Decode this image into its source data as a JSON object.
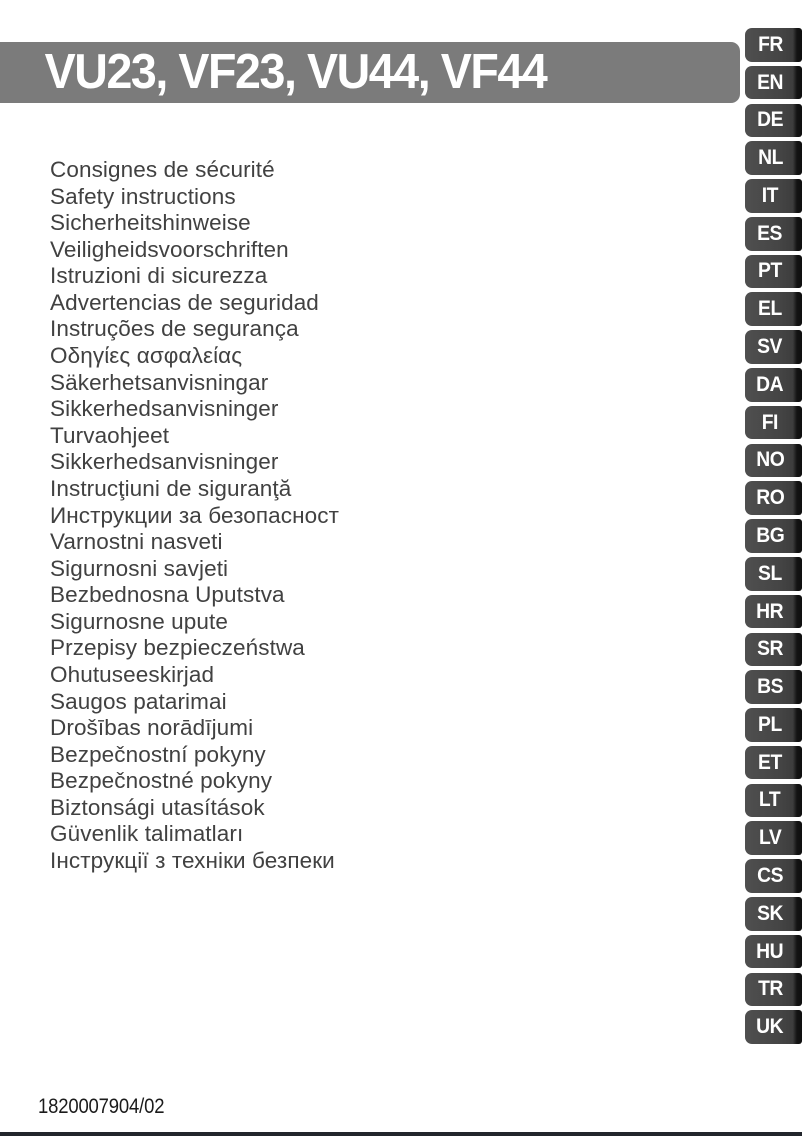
{
  "page": {
    "title": "VU23, VF23, VU44, VF44",
    "doc_code": "1820007904/02"
  },
  "languages": [
    {
      "code": "FR",
      "label": "Consignes de sécurité"
    },
    {
      "code": "EN",
      "label": "Safety instructions"
    },
    {
      "code": "DE",
      "label": "Sicherheitshinweise"
    },
    {
      "code": "NL",
      "label": "Veiligheidsvoorschriften"
    },
    {
      "code": "IT",
      "label": "Istruzioni di sicurezza"
    },
    {
      "code": "ES",
      "label": "Advertencias de seguridad"
    },
    {
      "code": "PT",
      "label": "Instruções de segurança"
    },
    {
      "code": "EL",
      "label": "Οδηγίες ασφαλείας"
    },
    {
      "code": "SV",
      "label": "Säkerhetsanvisningar"
    },
    {
      "code": "DA",
      "label": "Sikkerhedsanvisninger"
    },
    {
      "code": "FI",
      "label": "Turvaohjeet"
    },
    {
      "code": "NO",
      "label": "Sikkerhedsanvisninger"
    },
    {
      "code": "RO",
      "label": "Instrucţiuni de siguranţă"
    },
    {
      "code": "BG",
      "label": "Инструкции за безопасност"
    },
    {
      "code": "SL",
      "label": "Varnostni nasveti"
    },
    {
      "code": "HR",
      "label": "Sigurnosni savjeti"
    },
    {
      "code": "SR",
      "label": "Bezbednosna Uputstva"
    },
    {
      "code": "BS",
      "label": "Sigurnosne upute"
    },
    {
      "code": "PL",
      "label": "Przepisy bezpieczeństwa"
    },
    {
      "code": "ET",
      "label": "Ohutuseeskirjad"
    },
    {
      "code": "LT",
      "label": "Saugos patarimai"
    },
    {
      "code": "LV",
      "label": "Drošības norādījumi"
    },
    {
      "code": "CS",
      "label": "Bezpečnostní pokyny"
    },
    {
      "code": "SK",
      "label": "Bezpečnostné pokyny"
    },
    {
      "code": "HU",
      "label": "Biztonsági utasítások"
    },
    {
      "code": "TR",
      "label": "Güvenlik talimatları"
    },
    {
      "code": "UK",
      "label": "Інструкції з техніки безпеки"
    }
  ],
  "colors": {
    "header_bar": "#7b7b7b",
    "tab_body": "#454545",
    "tab_edge": "#141414",
    "list_text": "#414141",
    "title_text": "#ffffff",
    "code_text": "#1b1b1b",
    "rule": "#22262c",
    "paper": "#ffffff"
  }
}
